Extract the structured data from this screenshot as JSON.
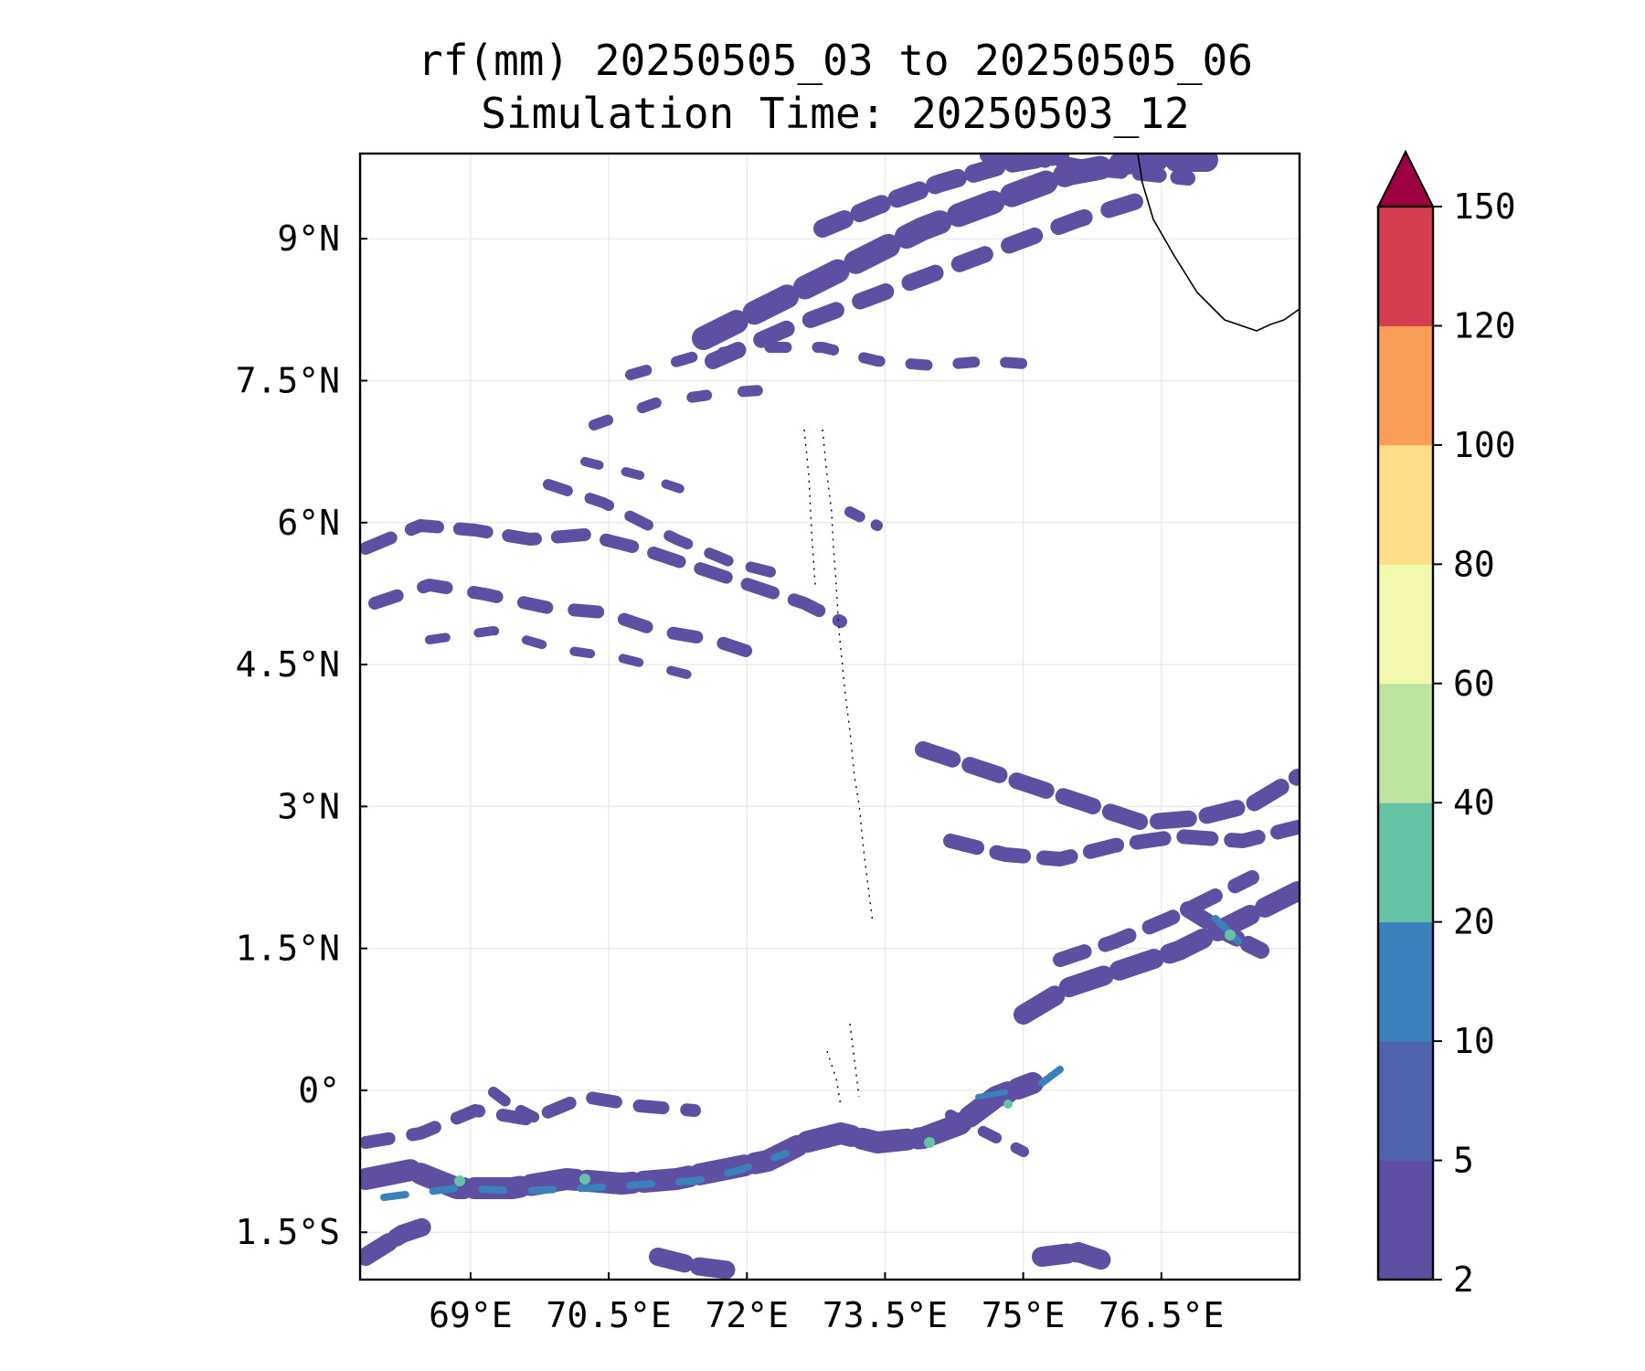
{
  "title": {
    "line1": "rf(mm) 20250505_03 to 20250505_06",
    "line2": "Simulation Time: 20250503_12"
  },
  "map": {
    "lon_range": [
      67.8,
      78.0
    ],
    "lat_range": [
      -2.0,
      9.9
    ],
    "lon_ticks": [
      {
        "value": 69.0,
        "label": "69°E"
      },
      {
        "value": 70.5,
        "label": "70.5°E"
      },
      {
        "value": 72.0,
        "label": "72°E"
      },
      {
        "value": 73.5,
        "label": "73.5°E"
      },
      {
        "value": 75.0,
        "label": "75°E"
      },
      {
        "value": 76.5,
        "label": "76.5°E"
      }
    ],
    "lat_ticks": [
      {
        "value": 9.0,
        "label": "9°N"
      },
      {
        "value": 7.5,
        "label": "7.5°N"
      },
      {
        "value": 6.0,
        "label": "6°N"
      },
      {
        "value": 4.5,
        "label": "4.5°N"
      },
      {
        "value": 3.0,
        "label": "3°N"
      },
      {
        "value": 1.5,
        "label": "1.5°N"
      },
      {
        "value": 0.0,
        "label": "0°"
      },
      {
        "value": -1.5,
        "label": "1.5°S"
      }
    ],
    "gridlines": true
  },
  "colorbar": {
    "levels": [
      2,
      5,
      10,
      20,
      40,
      60,
      80,
      100,
      120,
      150
    ],
    "level_labels": [
      "2",
      "5",
      "10",
      "20",
      "40",
      "60",
      "80",
      "100",
      "120",
      "150"
    ],
    "colors": [
      "#5e4fa2",
      "#4f63ad",
      "#3a80bb",
      "#66c2a5",
      "#bde3a1",
      "#f2f8ae",
      "#fddd8a",
      "#f99e59",
      "#d53e4f"
    ],
    "extend_color": "#9e0142",
    "extend": "max"
  }
}
